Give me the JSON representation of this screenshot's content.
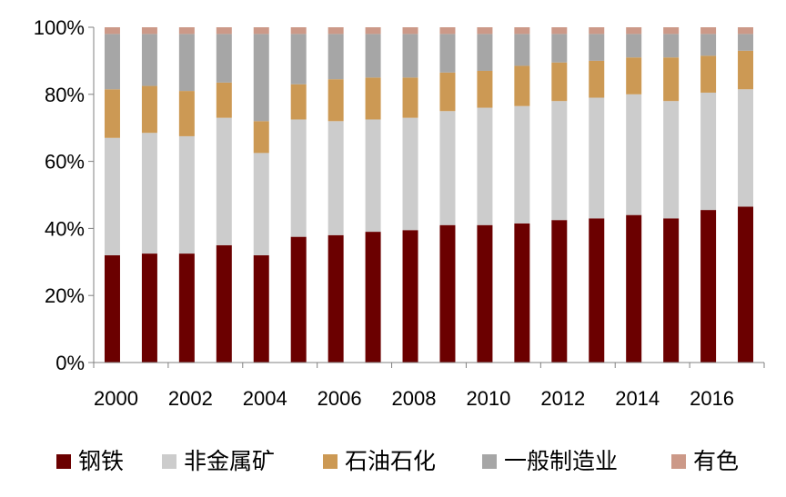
{
  "chart_data": {
    "type": "bar",
    "stacked": true,
    "percent": true,
    "x": [
      "2000",
      "2001",
      "2002",
      "2003",
      "2004",
      "2005",
      "2006",
      "2007",
      "2008",
      "2009",
      "2010",
      "2011",
      "2012",
      "2013",
      "2014",
      "2015",
      "2016",
      "2017"
    ],
    "x_tick_labels": [
      "2000",
      "2002",
      "2004",
      "2006",
      "2008",
      "2010",
      "2012",
      "2014",
      "2016"
    ],
    "y_tick_labels": [
      "0%",
      "20%",
      "40%",
      "60%",
      "80%",
      "100%"
    ],
    "ylim": [
      0,
      100
    ],
    "grid": false,
    "legend_position": "bottom",
    "series": [
      {
        "name": "钢铁",
        "color": "#6b0000",
        "values": [
          32,
          32.5,
          32.5,
          35,
          32,
          37.5,
          38,
          39,
          39.5,
          41,
          41,
          41.5,
          42.5,
          43,
          44,
          43,
          45.5,
          46.5
        ]
      },
      {
        "name": "非金属矿",
        "color": "#cccccc",
        "values": [
          35,
          36,
          35,
          38,
          30.5,
          35,
          34,
          33.5,
          33.5,
          34,
          35,
          35,
          35.5,
          36,
          36,
          35,
          35,
          35
        ]
      },
      {
        "name": "石油石化",
        "color": "#cc9954",
        "values": [
          14.5,
          14,
          13.5,
          10.5,
          9.5,
          10.5,
          12.5,
          12.5,
          12,
          11.5,
          11,
          12,
          11.5,
          11,
          11,
          13,
          11,
          11.5
        ]
      },
      {
        "name": "一般制造业",
        "color": "#a6a6a6",
        "values": [
          16.5,
          15.5,
          17,
          14.5,
          26,
          15,
          13.5,
          13,
          13,
          11.5,
          11,
          9.5,
          8.5,
          8,
          7,
          7,
          6.5,
          5
        ]
      },
      {
        "name": "有色",
        "color": "#cc9988",
        "values": [
          2,
          2,
          2,
          2,
          2,
          2,
          2,
          2,
          2,
          2,
          2,
          2,
          2,
          2,
          2,
          2,
          2,
          2
        ]
      }
    ]
  }
}
